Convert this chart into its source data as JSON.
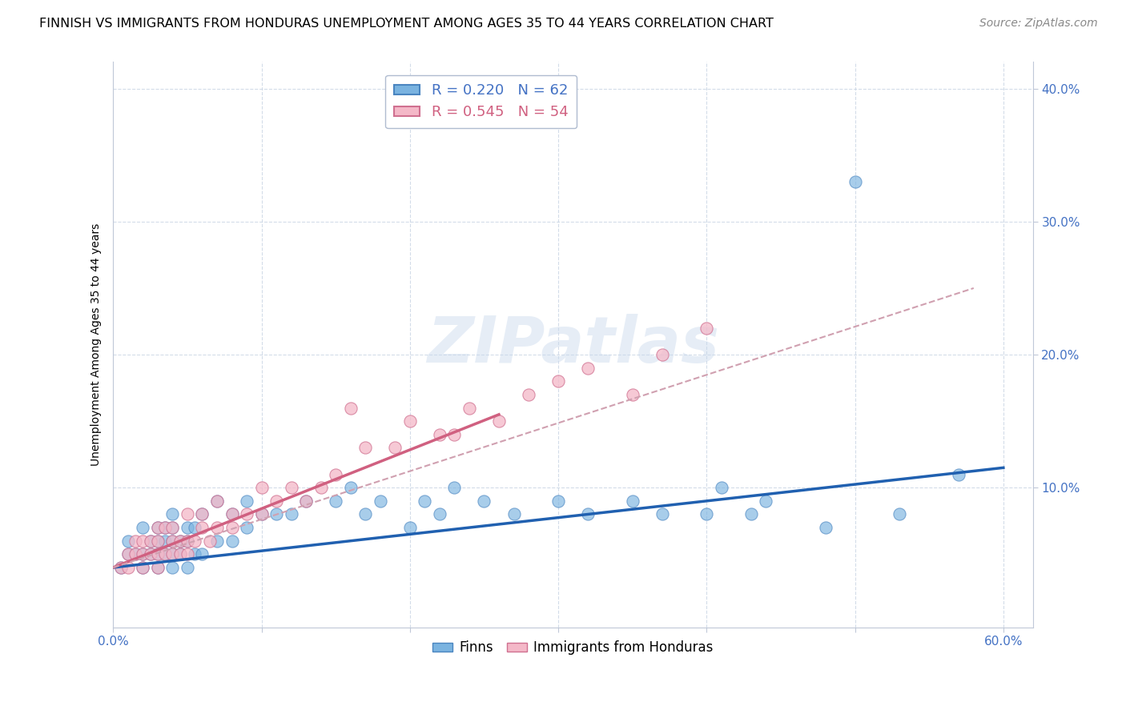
{
  "title": "FINNISH VS IMMIGRANTS FROM HONDURAS UNEMPLOYMENT AMONG AGES 35 TO 44 YEARS CORRELATION CHART",
  "source": "Source: ZipAtlas.com",
  "ylabel": "Unemployment Among Ages 35 to 44 years",
  "xlim": [
    0.0,
    0.62
  ],
  "ylim": [
    -0.005,
    0.42
  ],
  "yticks": [
    0.1,
    0.2,
    0.3,
    0.4
  ],
  "ytick_labels": [
    "10.0%",
    "20.0%",
    "30.0%",
    "40.0%"
  ],
  "xtick_labels": [
    "0.0%",
    "",
    "",
    "",
    "",
    "",
    "60.0%"
  ],
  "finns_color": "#7ab3e0",
  "finland_edge_color": "#4a85c0",
  "honduras_color": "#f4b8c8",
  "honduras_edge_color": "#d07090",
  "finns_line_color": "#2060b0",
  "honduras_line_color": "#d06080",
  "honduras_dash_color": "#d0a0b0",
  "title_fontsize": 11.5,
  "axis_label_fontsize": 10,
  "tick_fontsize": 11,
  "legend_fontsize": 13,
  "source_fontsize": 10,
  "finns_scatter_x": [
    0.005,
    0.01,
    0.01,
    0.015,
    0.02,
    0.02,
    0.02,
    0.025,
    0.025,
    0.03,
    0.03,
    0.03,
    0.03,
    0.035,
    0.035,
    0.035,
    0.04,
    0.04,
    0.04,
    0.04,
    0.04,
    0.045,
    0.045,
    0.05,
    0.05,
    0.05,
    0.055,
    0.055,
    0.06,
    0.06,
    0.07,
    0.07,
    0.08,
    0.08,
    0.09,
    0.09,
    0.1,
    0.11,
    0.12,
    0.13,
    0.15,
    0.16,
    0.17,
    0.18,
    0.2,
    0.21,
    0.22,
    0.23,
    0.25,
    0.27,
    0.3,
    0.32,
    0.35,
    0.37,
    0.4,
    0.41,
    0.43,
    0.44,
    0.48,
    0.5,
    0.53,
    0.57
  ],
  "finns_scatter_y": [
    0.04,
    0.05,
    0.06,
    0.05,
    0.04,
    0.05,
    0.07,
    0.05,
    0.06,
    0.04,
    0.05,
    0.06,
    0.07,
    0.05,
    0.06,
    0.07,
    0.04,
    0.05,
    0.06,
    0.07,
    0.08,
    0.05,
    0.06,
    0.04,
    0.06,
    0.07,
    0.05,
    0.07,
    0.05,
    0.08,
    0.06,
    0.09,
    0.06,
    0.08,
    0.07,
    0.09,
    0.08,
    0.08,
    0.08,
    0.09,
    0.09,
    0.1,
    0.08,
    0.09,
    0.07,
    0.09,
    0.08,
    0.1,
    0.09,
    0.08,
    0.09,
    0.08,
    0.09,
    0.08,
    0.08,
    0.1,
    0.08,
    0.09,
    0.07,
    0.33,
    0.08,
    0.11
  ],
  "honduras_scatter_x": [
    0.005,
    0.01,
    0.01,
    0.015,
    0.015,
    0.02,
    0.02,
    0.02,
    0.025,
    0.025,
    0.03,
    0.03,
    0.03,
    0.03,
    0.035,
    0.035,
    0.04,
    0.04,
    0.04,
    0.045,
    0.045,
    0.05,
    0.05,
    0.05,
    0.055,
    0.06,
    0.06,
    0.065,
    0.07,
    0.07,
    0.08,
    0.08,
    0.09,
    0.1,
    0.1,
    0.11,
    0.12,
    0.13,
    0.14,
    0.15,
    0.16,
    0.17,
    0.19,
    0.2,
    0.22,
    0.23,
    0.24,
    0.26,
    0.28,
    0.3,
    0.32,
    0.35,
    0.37,
    0.4
  ],
  "honduras_scatter_y": [
    0.04,
    0.04,
    0.05,
    0.05,
    0.06,
    0.04,
    0.05,
    0.06,
    0.05,
    0.06,
    0.04,
    0.05,
    0.06,
    0.07,
    0.05,
    0.07,
    0.05,
    0.06,
    0.07,
    0.05,
    0.06,
    0.05,
    0.06,
    0.08,
    0.06,
    0.07,
    0.08,
    0.06,
    0.07,
    0.09,
    0.07,
    0.08,
    0.08,
    0.08,
    0.1,
    0.09,
    0.1,
    0.09,
    0.1,
    0.11,
    0.16,
    0.13,
    0.13,
    0.15,
    0.14,
    0.14,
    0.16,
    0.15,
    0.17,
    0.18,
    0.19,
    0.17,
    0.2,
    0.22
  ],
  "finns_line_x": [
    0.0,
    0.6
  ],
  "finns_line_y": [
    0.04,
    0.115
  ],
  "honduras_solid_line_x": [
    0.0,
    0.26
  ],
  "honduras_solid_line_y": [
    0.04,
    0.155
  ],
  "honduras_dash_line_x": [
    0.0,
    0.58
  ],
  "honduras_dash_line_y": [
    0.04,
    0.25
  ]
}
